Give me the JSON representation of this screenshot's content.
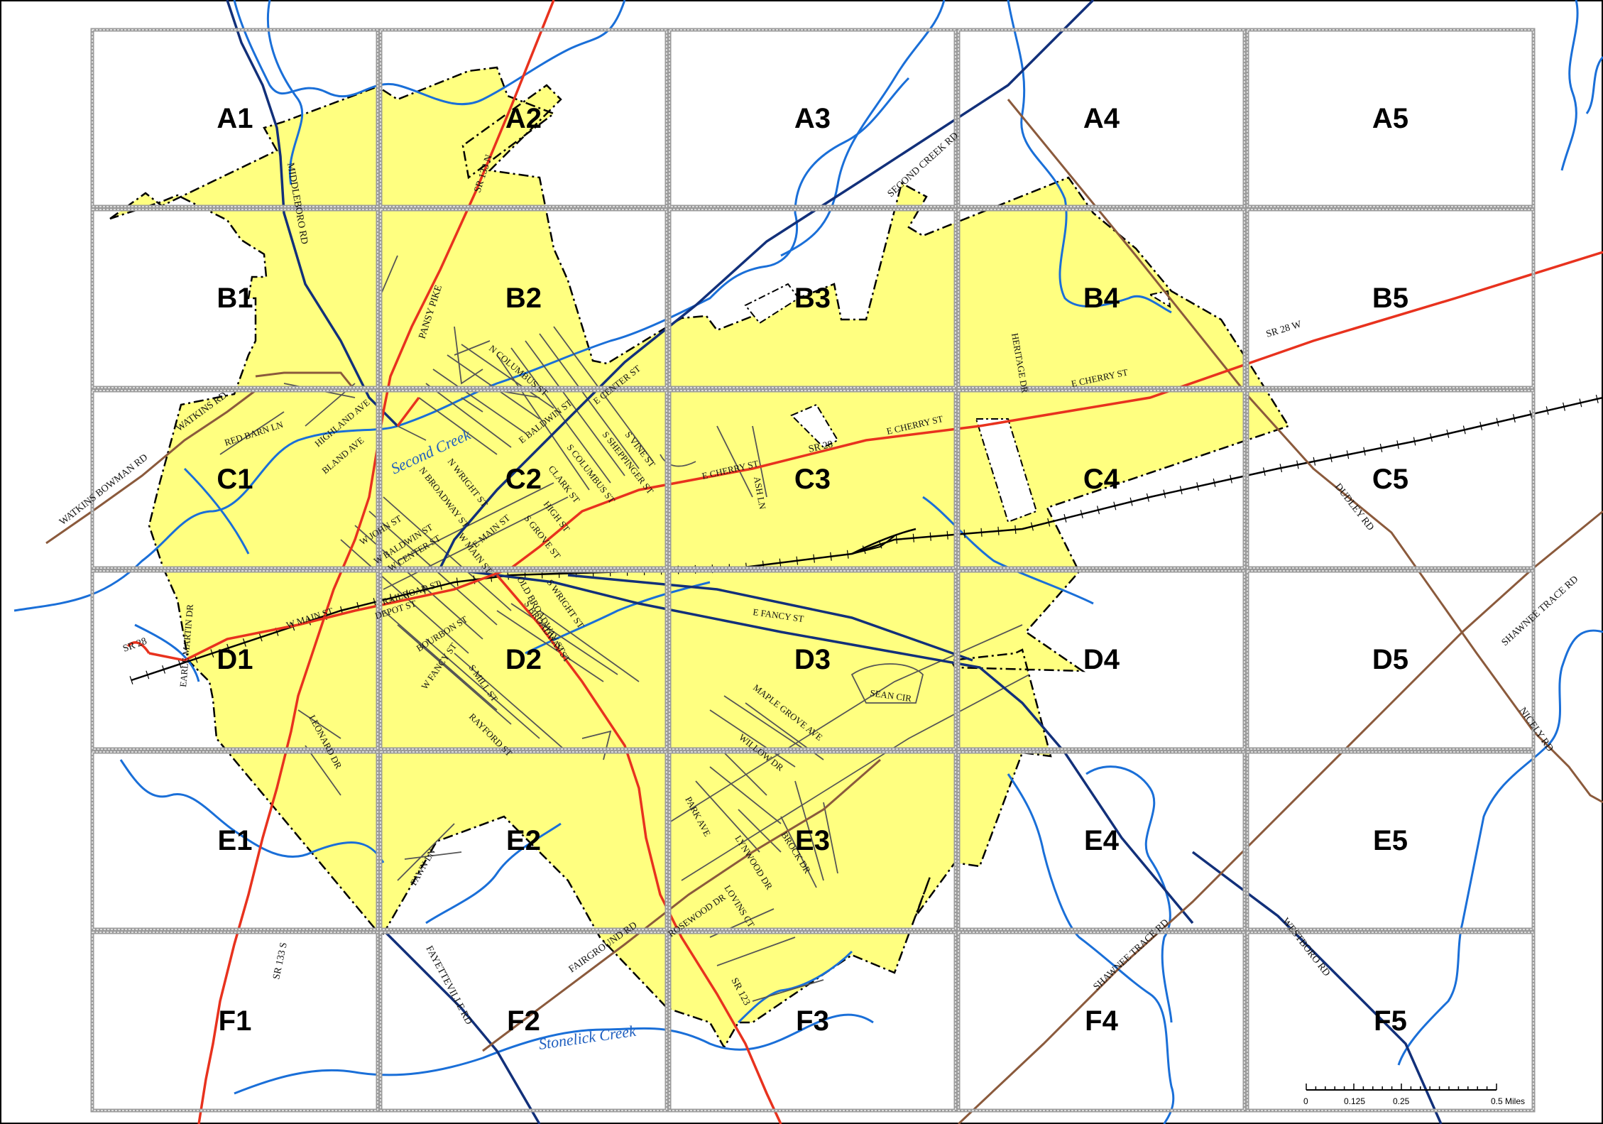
{
  "grid": {
    "rows": [
      "A",
      "B",
      "C",
      "D",
      "E",
      "F"
    ],
    "cols": [
      "1",
      "2",
      "3",
      "4",
      "5"
    ],
    "cells": [
      [
        "A1",
        "A2",
        "A3",
        "A4",
        "A5"
      ],
      [
        "B1",
        "B2",
        "B3",
        "B4",
        "B5"
      ],
      [
        "C1",
        "C2",
        "C3",
        "C4",
        "C5"
      ],
      [
        "D1",
        "D2",
        "D3",
        "D4",
        "D5"
      ],
      [
        "E1",
        "E2",
        "E3",
        "E4",
        "E5"
      ],
      [
        "F1",
        "F2",
        "F3",
        "F4",
        "F5"
      ]
    ]
  },
  "roads": {
    "middleboro": "MIDDLEBORO RD",
    "sr133n": "SR 133   N",
    "sr133s": "SR 133   S",
    "pansy": "PANSY PIKE",
    "second_creek": "SECOND CREEK RD",
    "sr28w": "SR 28   W",
    "sr28": "SR 28",
    "sr28_left": "SR 28",
    "watkins": "WATKINS RD",
    "watkins_bowman": "WATKINS BOWMAN RD",
    "dudley": "DUDLEY RD",
    "shawnee_trace_1": "SHAWNEE TRACE RD",
    "shawnee_trace_2": "SHAWNEE TRACE RD",
    "nicely": "NICELY RD",
    "westboro": "WESTBORO RD",
    "fayetteville": "FAYETTEVILLE RD",
    "fairground": "FAIRGROUND RD",
    "sr123": "SR 123"
  },
  "streets": {
    "heritage": "HERITAGE DR",
    "e_cherry_1": "E CHERRY ST",
    "e_cherry_2": "E CHERRY ST",
    "e_cherry_3": "E CHERRY ST",
    "n_columbus": "N COLUMBUS ST",
    "e_center": "E CENTER ST",
    "e_baldwin": "E BALDWIN ST",
    "s_vine": "S VINE ST",
    "s_sheppinger": "S SHEPPINGER ST",
    "s_columbus": "S COLUMBUS ST",
    "clark": "CLARK ST",
    "high": "HIGH ST",
    "s_grove": "S GROVE ST",
    "e_main": "E MAIN ST",
    "n_wright": "N WRIGHT ST",
    "n_broadway": "N BROADWAY ST",
    "w_john": "W JOHN ST",
    "w_baldwin": "W BALDWIN ST",
    "w_center": "W CENTER ST",
    "w_main_short": "W MAIN ST",
    "w_main": "W MAIN ST",
    "railroad": "RAILROAD ST",
    "depot": "DEPOT ST",
    "bourbon": "BOURBON ST",
    "w_fancy": "W FANCY ST",
    "s_mill": "S MILL ST",
    "old_broadway": "OLD BROADWAY ST",
    "s_broadway": "S BROADWAY ST",
    "s_wright": "S WRIGHT ST",
    "e_fancy": "E FANCY ST",
    "red_barn": "RED BARN LN",
    "highland": "HIGHLAND AVE",
    "bland": "BLAND AVE",
    "earle": "EARLE MARTIN DR",
    "leonard": "LEONARD DR",
    "rayford": "RAYFORD ST",
    "maple_grove": "MAPLE GROVE AVE",
    "willow": "WILLOW DR",
    "park": "PARK AVE",
    "lynwood": "LYNWOOD DR",
    "brock": "BROCK DR",
    "lovins": "LOVINS CT",
    "rosewood": "ROSEWOOD DR",
    "fawn": "FAWN LN",
    "ash": "ASH LN",
    "sean": "SEAN CIR"
  },
  "creeks": {
    "second": "Second Creek",
    "stonelick": "Stonelick Creek"
  },
  "scale": {
    "ticks": [
      "0",
      "0.125",
      "0.25",
      "0.5 Miles"
    ]
  },
  "colors": {
    "municipal_area": "#ffff80",
    "state_route": "#e8321e",
    "county_road": "#8b5a3c",
    "highway": "#12307a",
    "waterway": "#1a6fd8",
    "grid_line": "#9a9a9a",
    "street": "#555555",
    "railroad": "#000000"
  }
}
